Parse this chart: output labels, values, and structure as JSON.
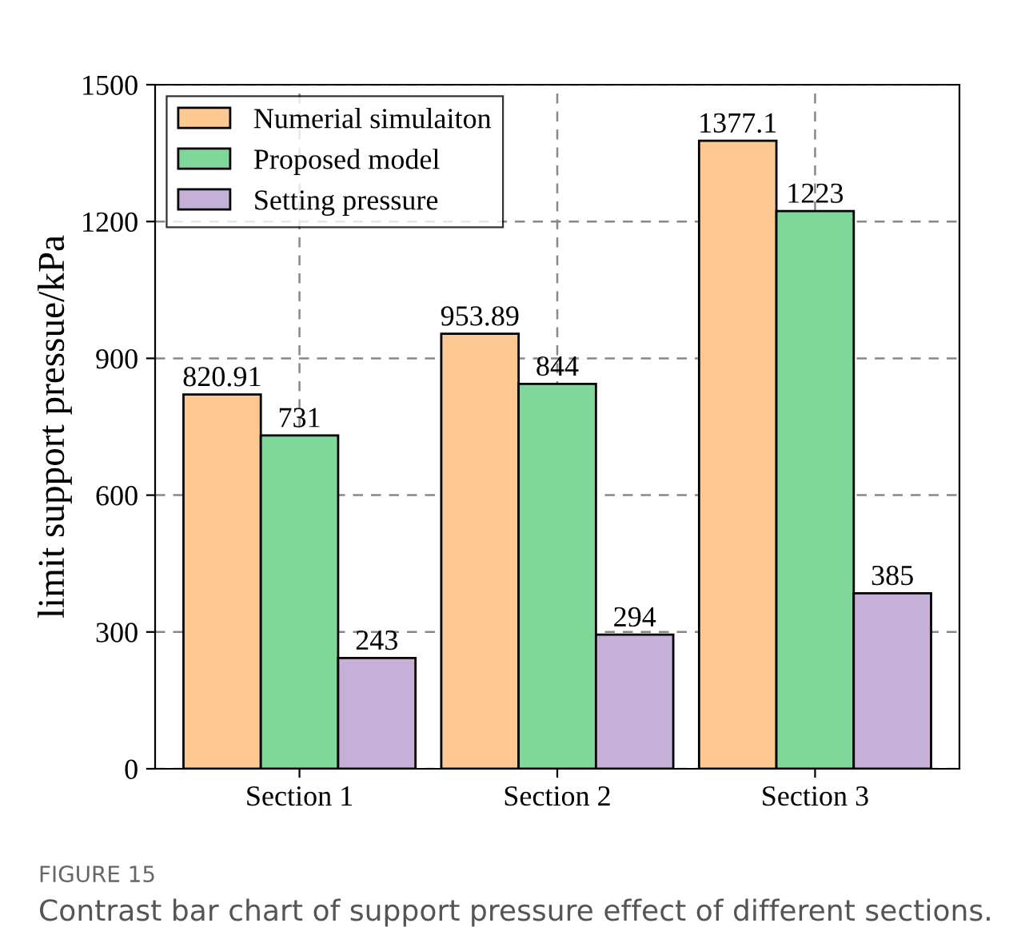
{
  "chart_data": {
    "type": "bar",
    "categories": [
      "Section 1",
      "Section 2",
      "Section 3"
    ],
    "ylabel": "limit support pressue/kPa",
    "ylim": [
      0,
      1500
    ],
    "yticks": [
      0,
      300,
      600,
      900,
      1200,
      1500
    ],
    "series": [
      {
        "name": "Numerial simulaiton",
        "color": "#fec893",
        "values": [
          820.91,
          953.89,
          1377.1
        ]
      },
      {
        "name": "Proposed model",
        "color": "#7fd899",
        "values": [
          731,
          844,
          1223
        ]
      },
      {
        "name": "Setting pressure",
        "color": "#c5b1d8",
        "values": [
          243,
          294,
          385
        ]
      }
    ],
    "data_labels": true,
    "grid": true,
    "legend": "top left",
    "annotations": [
      "FIGURE 15",
      "Contrast bar chart of support pressure effect of different sections."
    ]
  }
}
